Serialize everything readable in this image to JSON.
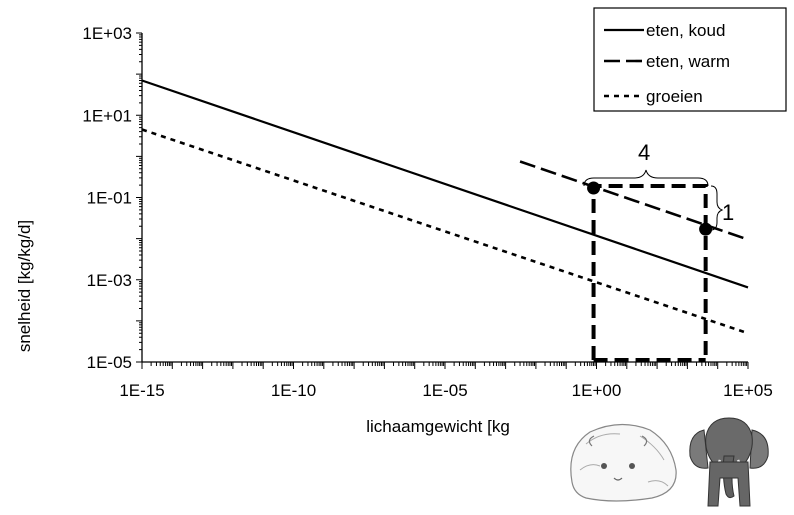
{
  "chart_data": {
    "type": "line",
    "xscale": "log",
    "yscale": "log",
    "xlim": [
      1e-15,
      100000.0
    ],
    "ylim": [
      1e-05,
      1000.0
    ],
    "xlabel": "lichaamgewicht [kg",
    "ylabel": "snelheid  [kg/kg/d]",
    "xtick_labels": [
      "1E-15",
      "1E-10",
      "1E-05",
      "1E+00",
      "1E+05"
    ],
    "ytick_labels": [
      "1E+03",
      "1E+01",
      "1E-01",
      "1E-03",
      "1E-05"
    ],
    "grid": false,
    "legend_position": "top-right",
    "series": [
      {
        "name": "eten, koud",
        "style": "solid",
        "x": [
          1e-15,
          100000.0
        ],
        "y": [
          70,
          0.00065
        ]
      },
      {
        "name": "eten, warm",
        "style": "dashed",
        "x": [
          0.003,
          100000.0
        ],
        "y": [
          0.75,
          0.0095
        ]
      },
      {
        "name": "groeien",
        "style": "dotted",
        "x": [
          1e-15,
          100000.0
        ],
        "y": [
          4.5,
          5e-05
        ]
      }
    ],
    "highlight_points": [
      {
        "x": 0.8,
        "y": 0.17
      },
      {
        "x": 4000,
        "y": 0.017
      }
    ],
    "highlight_box": {
      "x": [
        0.8,
        4000
      ],
      "y": [
        1e-05,
        0.19
      ]
    },
    "annotations": [
      {
        "text": "4",
        "meaning": "orders of magnitude in body weight"
      },
      {
        "text": "1",
        "meaning": "order of magnitude in rate"
      }
    ]
  },
  "colors": {
    "ink": "#000000",
    "background": "#ffffff"
  },
  "illustrations": [
    "guinea-pig",
    "elephant"
  ]
}
